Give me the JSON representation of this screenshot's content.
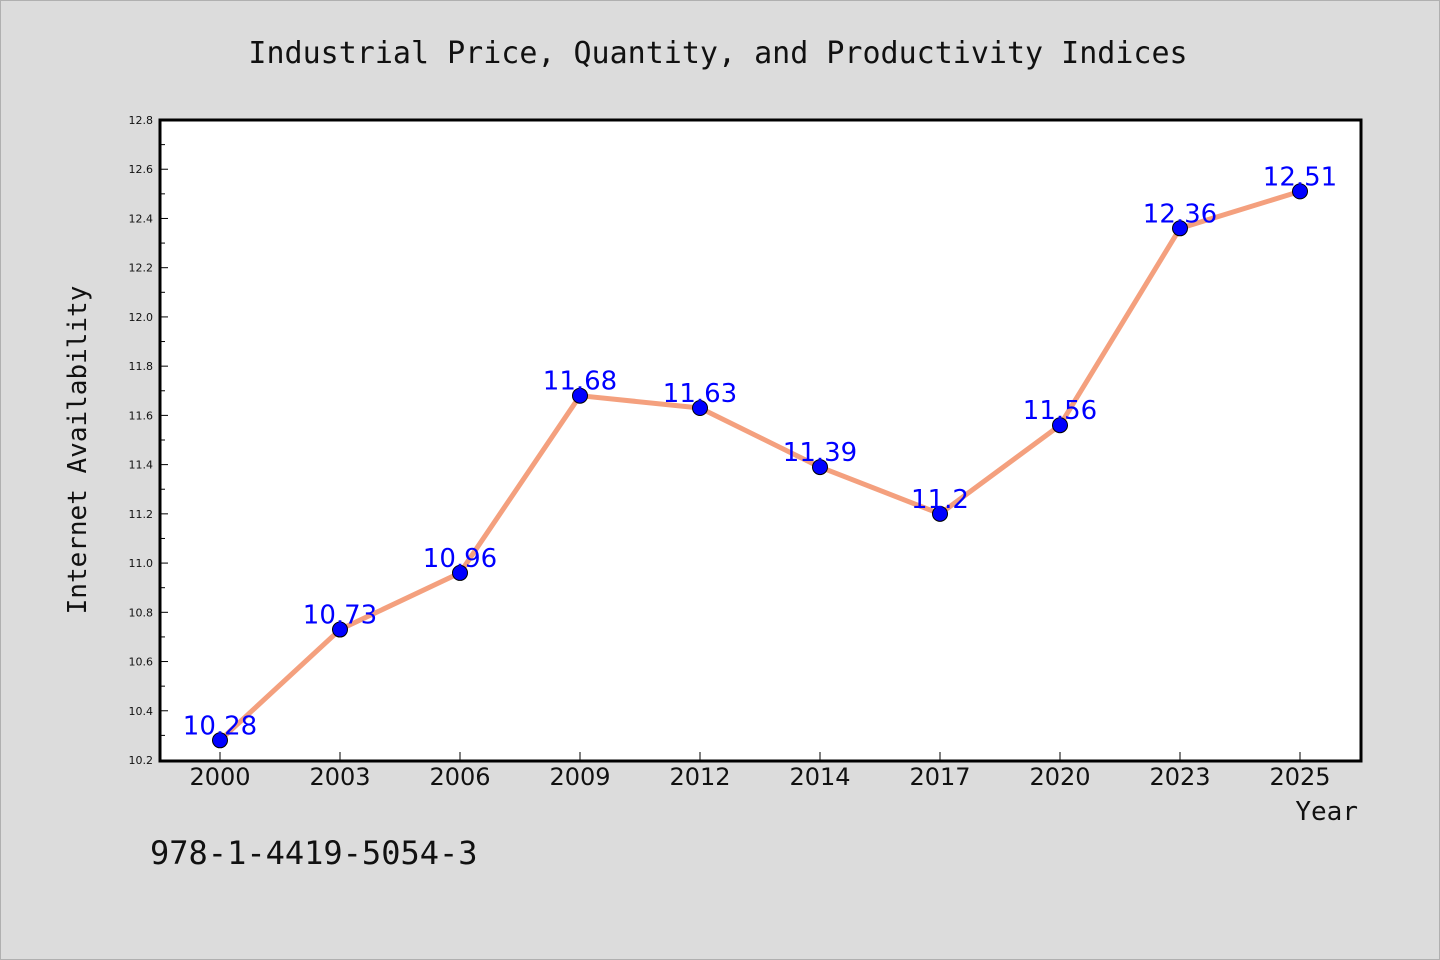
{
  "chart_data": {
    "type": "line",
    "title": "Industrial Price, Quantity, and Productivity Indices",
    "xlabel": "Year",
    "ylabel": "Internet Availability",
    "categories": [
      "2000",
      "2003",
      "2006",
      "2009",
      "2012",
      "2014",
      "2017",
      "2020",
      "2023",
      "2025"
    ],
    "series": [
      {
        "values": [
          10.28,
          10.73,
          10.96,
          11.68,
          11.63,
          11.39,
          11.2,
          11.56,
          12.36,
          12.51
        ]
      }
    ],
    "data_labels": [
      "10.28",
      "10.73",
      "10.96",
      "11.68",
      "11.63",
      "11.39",
      "11.2",
      "11.56",
      "12.36",
      "12.51"
    ],
    "ylim": [
      10.2,
      12.8
    ],
    "yticks": [
      "10.2",
      "10.4",
      "10.6",
      "10.8",
      "11.0",
      "11.2",
      "11.4",
      "11.6",
      "11.8",
      "12.0",
      "12.2",
      "12.4",
      "12.6",
      "12.8"
    ],
    "grid": false,
    "colors": {
      "line": "#f4a07e",
      "marker": "#0000ff",
      "label": "#0000ff",
      "background": "#dcdcdc",
      "plot_area": "#ffffff"
    }
  },
  "footer": {
    "isbn": "978-1-4419-5054-3"
  }
}
